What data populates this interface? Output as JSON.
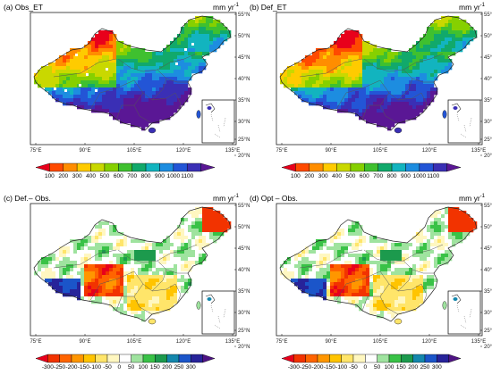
{
  "panels": [
    {
      "id": "a",
      "title": "(a) Obs_ET",
      "unit": "mm yr",
      "unit_exp": "-1",
      "scheme": "et"
    },
    {
      "id": "b",
      "title": "(b) Def_ET",
      "unit": "mm yr",
      "unit_exp": "-1",
      "scheme": "et"
    },
    {
      "id": "c",
      "title": "(c) Def.– Obs.",
      "unit": "mm yr",
      "unit_exp": "-1",
      "scheme": "diff"
    },
    {
      "id": "d",
      "title": "(d) Opt – Obs.",
      "unit": "mm yr",
      "unit_exp": "-1",
      "scheme": "diff"
    }
  ],
  "lon_labels": [
    "75°E",
    "90°E",
    "105°E",
    "120°E",
    "135°E"
  ],
  "lat_labels": [
    "55°N",
    "50°N",
    "45°N",
    "40°N",
    "35°N",
    "30°N",
    "25°N",
    "20°N"
  ],
  "colorbars": {
    "et": {
      "labels": [
        "100",
        "200",
        "300",
        "400",
        "500",
        "600",
        "700",
        "800",
        "900",
        "1000",
        "1100"
      ],
      "colors": [
        "#e8001b",
        "#ff4a00",
        "#ff8d00",
        "#ffcb00",
        "#c9d800",
        "#86d000",
        "#3fc02f",
        "#11a96b",
        "#12b4bf",
        "#1d8de0",
        "#2355d6",
        "#3a2fb5",
        "#5a1795"
      ]
    },
    "diff": {
      "labels": [
        "-300",
        "-250",
        "-200",
        "-150",
        "-100",
        "-50",
        "0",
        "50",
        "100",
        "150",
        "200",
        "250",
        "300"
      ],
      "colors": [
        "#e8001b",
        "#f23300",
        "#ff6400",
        "#ff9600",
        "#ffc400",
        "#ffe56a",
        "#fff7c0",
        "#ffffff",
        "#9fe39f",
        "#39c247",
        "#1c9a4d",
        "#1487ad",
        "#1b55c9",
        "#27239a",
        "#4e1384"
      ]
    }
  }
}
